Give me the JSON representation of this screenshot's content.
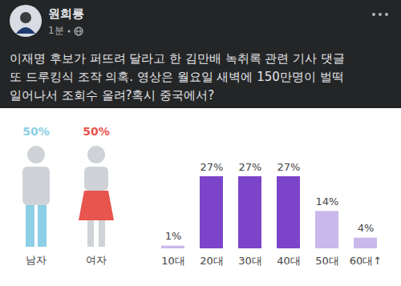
{
  "post": {
    "author": "원희룡",
    "time": "1분",
    "text_lines": [
      "이재명 후보가 퍼뜨려 달라고 한 김만배 녹취록 관련 기사 댓글",
      "또 드루킹식 조작 의혹. 영상은 월요일 새벽에 150만명이 벌떡",
      "일어나서 조회수 올려?혹시 중국에서?"
    ]
  },
  "chart_data": [
    {
      "type": "pictogram",
      "categories": [
        "남자",
        "여자"
      ],
      "values": [
        50,
        50
      ],
      "value_labels": [
        "50%",
        "50%"
      ],
      "colors": [
        "#8ccfe6",
        "#e8544e"
      ],
      "data_labels": true
    },
    {
      "type": "bar",
      "categories": [
        "10대",
        "20대",
        "30대",
        "40대",
        "50대",
        "60대↑"
      ],
      "values": [
        1,
        27,
        27,
        27,
        14,
        4
      ],
      "value_labels": [
        "1%",
        "27%",
        "27%",
        "27%",
        "14%",
        "4%"
      ],
      "colors": [
        "#c9b8ea",
        "#7c45c9",
        "#7c45c9",
        "#7c45c9",
        "#c9b8ea",
        "#c9b8ea"
      ],
      "ylim": [
        0,
        27
      ],
      "data_labels": true,
      "tick_labels": "x"
    }
  ]
}
